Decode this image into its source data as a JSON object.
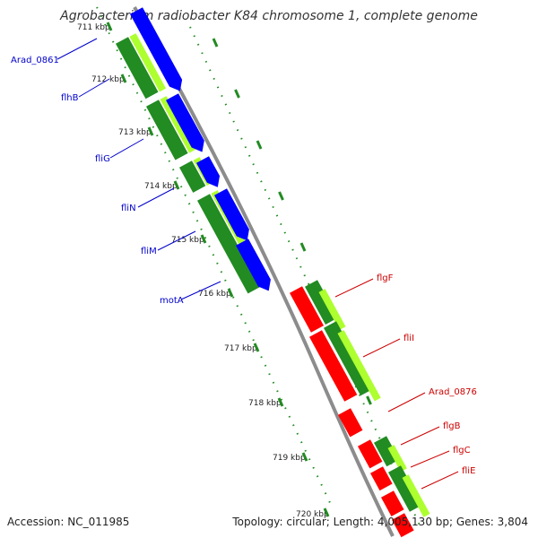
{
  "title": "Agrobacterium radiobacter K84 chromosome 1, complete genome",
  "accession": "Accession: NC_011985",
  "summary": "Topology: circular; Length: 4,005,130 bp; Genes: 3,804",
  "colors": {
    "backbone": "#8c8c8c",
    "forward_gene": "#0000ff",
    "reverse_gene": "#ff0000",
    "cds_dark": "#228b22",
    "cds_light": "#adff2f",
    "tick": "#228b22",
    "label_forward": "#0000cc",
    "label_reverse": "#cc0000"
  },
  "ticks": [
    {
      "label": "711 kbp"
    },
    {
      "label": "712 kbp"
    },
    {
      "label": "713 kbp"
    },
    {
      "label": "714 kbp"
    },
    {
      "label": "715 kbp"
    },
    {
      "label": "716 kbp"
    },
    {
      "label": "717 kbp"
    },
    {
      "label": "718 kbp"
    },
    {
      "label": "719 kbp"
    },
    {
      "label": "720 kbp"
    }
  ],
  "genes_left": [
    {
      "label": "Arad_0861"
    },
    {
      "label": "flhB"
    },
    {
      "label": "fliG"
    },
    {
      "label": "fliN"
    },
    {
      "label": "fliM"
    },
    {
      "label": "motA"
    }
  ],
  "genes_right": [
    {
      "label": "flgF"
    },
    {
      "label": "fliI"
    },
    {
      "label": "Arad_0876"
    },
    {
      "label": "flgB"
    },
    {
      "label": "flgC"
    },
    {
      "label": "fliE"
    }
  ]
}
